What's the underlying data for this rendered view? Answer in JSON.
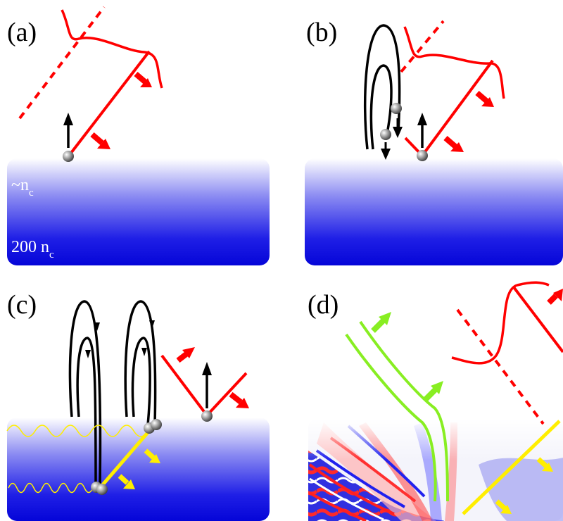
{
  "panels": [
    {
      "label": "(a)"
    },
    {
      "label": "(b)"
    },
    {
      "label": "(c)"
    },
    {
      "label": "(d)"
    }
  ],
  "density_labels": {
    "near_surface": {
      "prefix": "~n",
      "sub": "c"
    },
    "deep": {
      "prefix": "200 n",
      "sub": "c"
    }
  },
  "colors": {
    "laser": "#ff0000",
    "electron_path": "#000000",
    "harmonic": "#ffee00",
    "transmitted": "#88ee22",
    "plasma_top": "#ffffff",
    "plasma_bottom": "#0000ee",
    "electron": "#999999"
  }
}
